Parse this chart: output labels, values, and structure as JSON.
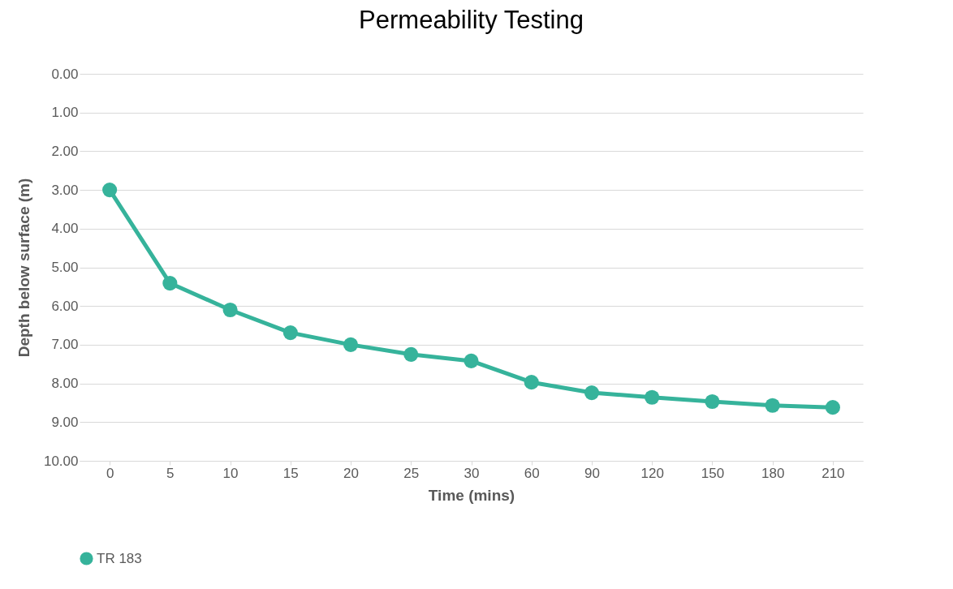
{
  "chart_data": {
    "type": "line",
    "title": "Permeability Testing",
    "xlabel": "Time (mins)",
    "ylabel": "Depth below surface (m)",
    "categories": [
      "0",
      "5",
      "10",
      "15",
      "20",
      "25",
      "30",
      "60",
      "90",
      "120",
      "150",
      "180",
      "210"
    ],
    "series": [
      {
        "name": "TR 183",
        "color": "#36b39b",
        "values": [
          3.0,
          5.41,
          6.1,
          6.69,
          7.0,
          7.25,
          7.42,
          7.97,
          8.24,
          8.36,
          8.47,
          8.57,
          8.62
        ]
      }
    ],
    "ylim": [
      10,
      0
    ],
    "yticks": [
      {
        "value": 0,
        "label": "0.00"
      },
      {
        "value": 1,
        "label": "1.00"
      },
      {
        "value": 2,
        "label": "2.00"
      },
      {
        "value": 3,
        "label": "3.00"
      },
      {
        "value": 4,
        "label": "4.00"
      },
      {
        "value": 5,
        "label": "5.00"
      },
      {
        "value": 6,
        "label": "6.00"
      },
      {
        "value": 7,
        "label": "7.00"
      },
      {
        "value": 8,
        "label": "8.00"
      },
      {
        "value": 9,
        "label": "9.00"
      },
      {
        "value": 10,
        "label": "10.00"
      }
    ],
    "grid": "y",
    "legend": "bottom",
    "marker": "circle",
    "line_style": "solid"
  }
}
